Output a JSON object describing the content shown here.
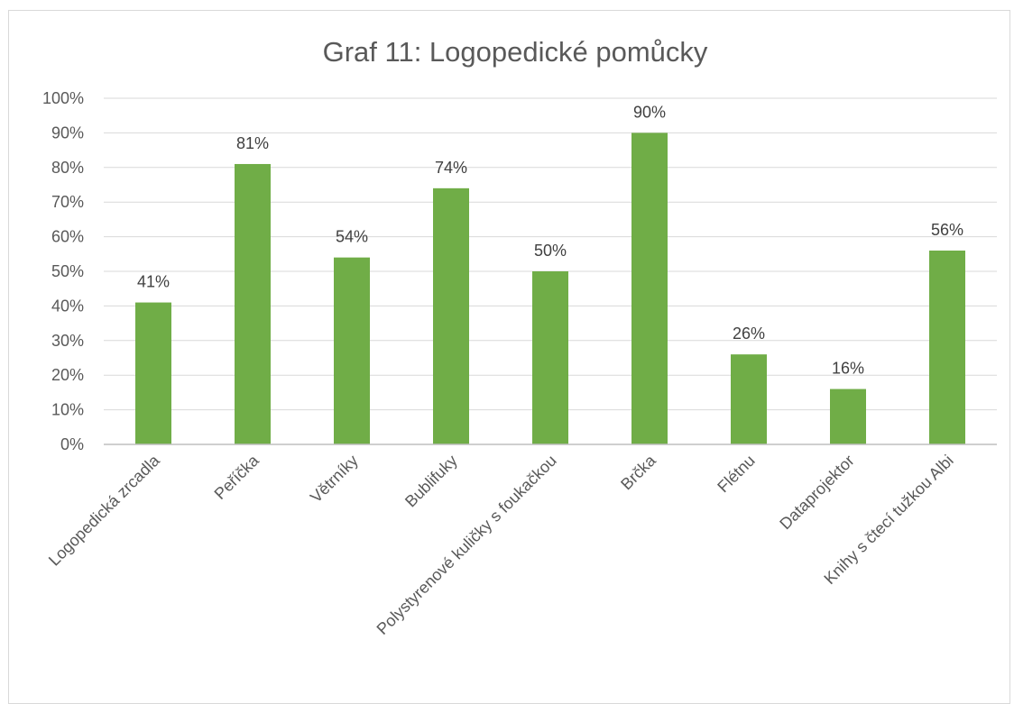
{
  "chart_data": {
    "type": "bar",
    "title": "Graf 11: Logopedické pomůcky",
    "xlabel": "",
    "ylabel": "",
    "categories": [
      "Logopedická zrcadla",
      "Peříčka",
      "Větrníky",
      "Bublifuky",
      "Polystyrenové kuličky s foukačkou",
      "Brčka",
      "Flétnu",
      "Dataprojektor",
      "Knihy s čtecí tužkou Albi"
    ],
    "values": [
      41,
      81,
      54,
      74,
      50,
      90,
      26,
      16,
      56
    ],
    "value_labels": [
      "41%",
      "81%",
      "54%",
      "74%",
      "50%",
      "90%",
      "26%",
      "16%",
      "56%"
    ],
    "ylim": [
      0,
      100
    ],
    "yticks": [
      0,
      10,
      20,
      30,
      40,
      50,
      60,
      70,
      80,
      90,
      100
    ],
    "ytick_labels": [
      "0%",
      "10%",
      "20%",
      "30%",
      "40%",
      "50%",
      "60%",
      "70%",
      "80%",
      "90%",
      "100%"
    ],
    "grid": true,
    "legend": "none",
    "colors": {
      "bar": "#70ad47",
      "grid": "#d9d9d9",
      "text": "#595959"
    }
  }
}
